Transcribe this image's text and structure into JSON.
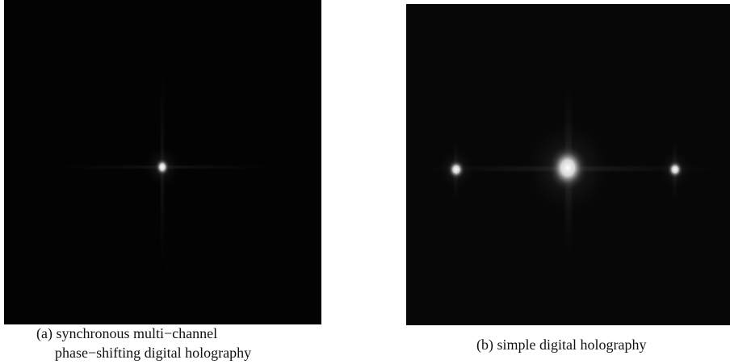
{
  "figures": [
    {
      "caption_lines": [
        "(a) synchronous multi−channel",
        "phase−shifting digital holography"
      ]
    },
    {
      "caption_lines": [
        "(b) simple digital holography"
      ]
    }
  ]
}
